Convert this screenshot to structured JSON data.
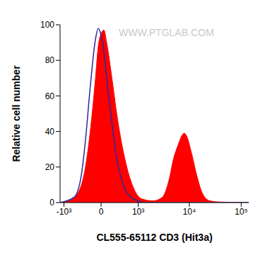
{
  "chart_data": {
    "type": "histogram",
    "x_label": "CL555-65112 CD3 (Hit3a)",
    "y_label": "Relative cell number",
    "annotations": [
      "WWW.PTGLAB.COM"
    ],
    "xlim": [
      -1200,
      140000
    ],
    "xticks": [
      {
        "value": -1000,
        "label": "-10³"
      },
      0,
      {
        "value": 1000,
        "label": "10³"
      },
      {
        "value": 10000,
        "label": "10⁴"
      },
      {
        "value": 100000,
        "label": "10⁵"
      }
    ],
    "ylim": [
      0,
      100
    ],
    "yticks": [
      0,
      20,
      40,
      60,
      80,
      100
    ],
    "grid": false,
    "series": [
      {
        "type": "area",
        "color": "#ff0000",
        "x": [
          -1200,
          -800,
          -500,
          -300,
          -200,
          -100,
          -50,
          0,
          50,
          100,
          200,
          300,
          500,
          800,
          1200,
          2000,
          3000,
          4000,
          5000,
          6000,
          8000,
          9000,
          11000,
          14000,
          18000,
          25000,
          40000,
          140000
        ],
        "values": [
          0,
          1,
          5,
          20,
          40,
          70,
          88,
          95,
          97,
          90,
          70,
          50,
          25,
          8,
          2,
          1,
          3,
          12,
          25,
          32,
          39,
          37,
          28,
          15,
          5,
          1,
          0.3,
          0
        ]
      },
      {
        "type": "line",
        "color": "#2a2aa0",
        "x": [
          -1200,
          -600,
          -400,
          -300,
          -200,
          -100,
          -50,
          0,
          50,
          100,
          200,
          300,
          500,
          800,
          1500,
          140000
        ],
        "values": [
          0,
          3,
          15,
          35,
          65,
          92,
          98,
          94,
          85,
          70,
          45,
          25,
          8,
          2,
          0,
          0
        ]
      }
    ]
  }
}
